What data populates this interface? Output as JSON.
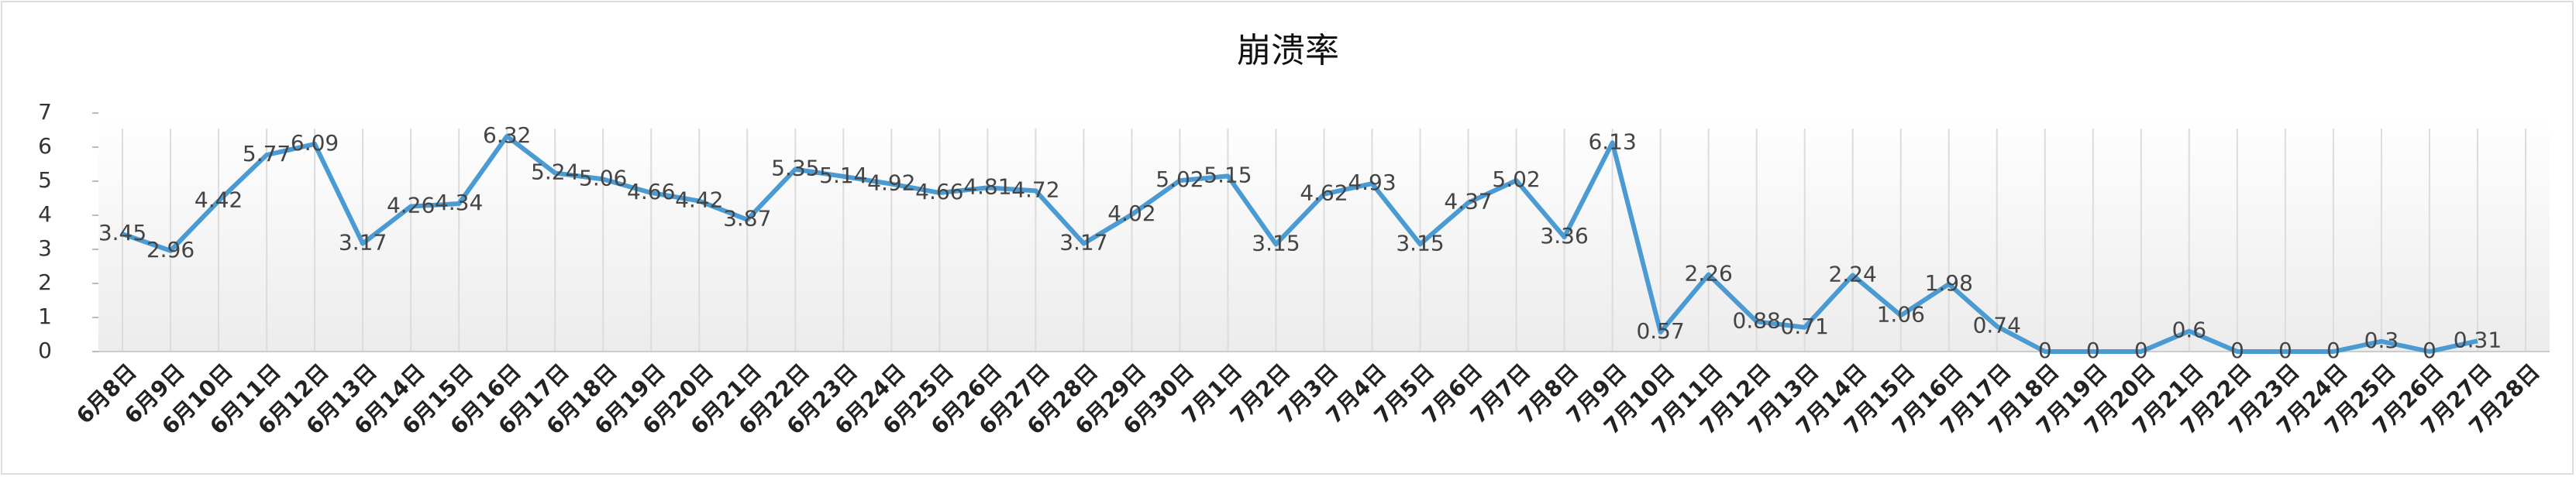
{
  "chart_data": {
    "type": "line",
    "title": "崩溃率",
    "categories": [
      "6月8日",
      "6月9日",
      "6月10日",
      "6月11日",
      "6月12日",
      "6月13日",
      "6月14日",
      "6月15日",
      "6月16日",
      "6月17日",
      "6月18日",
      "6月19日",
      "6月20日",
      "6月21日",
      "6月22日",
      "6月23日",
      "6月24日",
      "6月25日",
      "6月26日",
      "6月27日",
      "6月28日",
      "6月29日",
      "6月30日",
      "7月1日",
      "7月2日",
      "7月3日",
      "7月4日",
      "7月5日",
      "7月6日",
      "7月7日",
      "7月8日",
      "7月9日",
      "7月10日",
      "7月11日",
      "7月12日",
      "7月13日",
      "7月14日",
      "7月15日",
      "7月16日",
      "7月17日",
      "7月18日",
      "7月19日",
      "7月20日",
      "7月21日",
      "7月22日",
      "7月23日",
      "7月24日",
      "7月25日",
      "7月26日",
      "7月27日",
      "7月28日"
    ],
    "values": [
      3.45,
      2.96,
      4.42,
      5.77,
      6.09,
      3.17,
      4.26,
      4.34,
      6.32,
      5.24,
      5.06,
      4.66,
      4.42,
      3.87,
      5.35,
      5.14,
      4.92,
      4.66,
      4.81,
      4.72,
      3.17,
      4.02,
      5.02,
      5.15,
      3.15,
      4.62,
      4.93,
      3.15,
      4.37,
      5.02,
      3.36,
      6.13,
      0.57,
      2.26,
      0.88,
      0.71,
      2.24,
      1.06,
      1.98,
      0.74,
      0,
      0,
      0,
      0.6,
      0,
      0,
      0,
      0.3,
      0,
      0.31,
      null
    ],
    "color": "#4a9bd4",
    "ylim": [
      0,
      7
    ],
    "yticks": [
      0,
      1,
      2,
      3,
      4,
      5,
      6,
      7
    ],
    "grid": false
  }
}
